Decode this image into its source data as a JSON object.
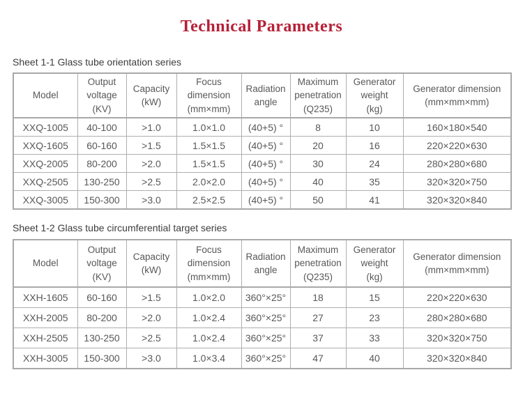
{
  "page": {
    "title": "Technical Parameters",
    "title_color": "#b52138",
    "table_text_color": "#58585a",
    "border_color": "#aeaeae"
  },
  "sections": [
    {
      "label": "Sheet 1-1 Glass tube orientation series",
      "table": {
        "headers": [
          "Model",
          "Output\nvoltage\n(KV)",
          "Capacity\n(kW)",
          "Focus\ndimension\n(mm×mm)",
          "Radiation\nangle",
          "Maximum\npenetration\n(Q235)",
          "Generator\nweight\n(kg)",
          "Generator dimension\n(mm×mm×mm)"
        ],
        "rows": [
          [
            "XXQ-1005",
            "40-100",
            ">1.0",
            "1.0×1.0",
            "(40+5) °",
            "8",
            "10",
            "160×180×540"
          ],
          [
            "XXQ-1605",
            "60-160",
            ">1.5",
            "1.5×1.5",
            "(40+5) °",
            "20",
            "16",
            "220×220×630"
          ],
          [
            "XXQ-2005",
            "80-200",
            ">2.0",
            "1.5×1.5",
            "(40+5) °",
            "30",
            "24",
            "280×280×680"
          ],
          [
            "XXQ-2505",
            "130-250",
            ">2.5",
            "2.0×2.0",
            "(40+5) °",
            "40",
            "35",
            "320×320×750"
          ],
          [
            "XXQ-3005",
            "150-300",
            ">3.0",
            "2.5×2.5",
            "(40+5) °",
            "50",
            "41",
            "320×320×840"
          ]
        ]
      }
    },
    {
      "label": "Sheet 1-2 Glass tube circumferential target series",
      "table": {
        "headers": [
          "Model",
          "Output\nvoltage\n(KV)",
          "Capacity\n(kW)",
          "Focus\ndimension\n(mm×mm)",
          "Radiation\nangle",
          "Maximum\npenetration\n(Q235)",
          "Generator\nweight\n(kg)",
          "Generator dimension\n(mm×mm×mm)"
        ],
        "rows": [
          [
            "XXH-1605",
            "60-160",
            ">1.5",
            "1.0×2.0",
            "360°×25°",
            "18",
            "15",
            "220×220×630"
          ],
          [
            "XXH-2005",
            "80-200",
            ">2.0",
            "1.0×2.4",
            "360°×25°",
            "27",
            "23",
            "280×280×680"
          ],
          [
            "XXH-2505",
            "130-250",
            ">2.5",
            "1.0×2.4",
            "360°×25°",
            "37",
            "33",
            "320×320×750"
          ],
          [
            "XXH-3005",
            "150-300",
            ">3.0",
            "1.0×3.4",
            "360°×25°",
            "47",
            "40",
            "320×320×840"
          ]
        ]
      }
    }
  ]
}
